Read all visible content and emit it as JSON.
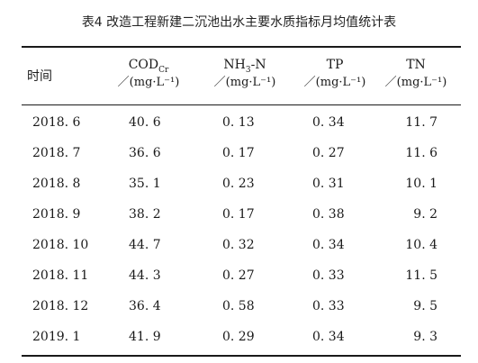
{
  "caption": "表4 改造工程新建二沉池出水主要水质指标月均值统计表",
  "headers": {
    "time": "时间",
    "cod": {
      "base": "COD",
      "sub": "Cr",
      "unit": "／(mg·L⁻¹)"
    },
    "nh3": {
      "pre": "NH",
      "sub": "3",
      "post": "-N",
      "unit": "／(mg·L⁻¹)"
    },
    "tp": {
      "name": "TP",
      "unit": "／(mg·L⁻¹)"
    },
    "tn": {
      "name": "TN",
      "unit": "／(mg·L⁻¹)"
    }
  },
  "rows": [
    {
      "time": "2018. 6",
      "cod": "40. 6",
      "nh3": "0. 13",
      "tp": "0. 34",
      "tn": "11. 7"
    },
    {
      "time": "2018. 7",
      "cod": "36. 6",
      "nh3": "0. 17",
      "tp": "0. 27",
      "tn": "11. 6"
    },
    {
      "time": "2018. 8",
      "cod": "35. 1",
      "nh3": "0. 23",
      "tp": "0. 31",
      "tn": "10. 1"
    },
    {
      "time": "2018. 9",
      "cod": "38. 2",
      "nh3": "0. 17",
      "tp": "0. 38",
      "tn": "9. 2"
    },
    {
      "time": "2018. 10",
      "cod": "44. 7",
      "nh3": "0. 32",
      "tp": "0. 34",
      "tn": "10. 4"
    },
    {
      "time": "2018. 11",
      "cod": "44. 3",
      "nh3": "0. 27",
      "tp": "0. 33",
      "tn": "11. 5"
    },
    {
      "time": "2018. 12",
      "cod": "36. 4",
      "nh3": "0. 58",
      "tp": "0. 33",
      "tn": "9. 5"
    },
    {
      "time": "2019. 1",
      "cod": "41. 9",
      "nh3": "0. 29",
      "tp": "0. 34",
      "tn": "9. 3"
    }
  ]
}
